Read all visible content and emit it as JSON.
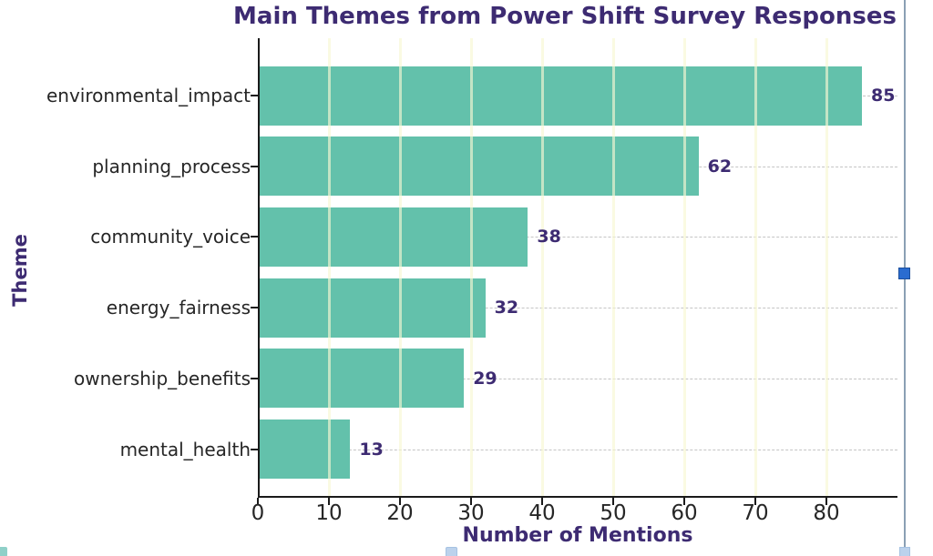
{
  "title": "Main Themes from Power Shift Survey Responses",
  "chart_data": {
    "type": "bar",
    "orientation": "horizontal",
    "title": "Main Themes from Power Shift Survey Responses",
    "xlabel": "Number of Mentions",
    "ylabel": "Theme",
    "categories": [
      "environmental_impact",
      "planning_process",
      "community_voice",
      "energy_fairness",
      "ownership_benefits",
      "mental_health"
    ],
    "values": [
      85,
      62,
      38,
      32,
      29,
      13
    ],
    "value_labels": [
      "85",
      "62",
      "38",
      "32",
      "29",
      "13"
    ],
    "xlim": [
      0,
      90
    ],
    "xticks": [
      0,
      10,
      20,
      30,
      40,
      50,
      60,
      70,
      80
    ],
    "grid": {
      "vertical": "on",
      "horizontal": "on-dashed",
      "legend": "none"
    },
    "colors": {
      "bar": "#63c1ab",
      "title_text": "#3d2b72",
      "axis_label_text": "#3d2b72",
      "value_label_text": "#3d2b72",
      "tick_text": "#262626",
      "spine": "#1a1a1a",
      "vertical_grid": "#f6f6d6",
      "horizontal_grid": "#c4c4c4"
    }
  },
  "editor_selection": {
    "handle_color": "#2a6cd0",
    "border_color": "#8aa0b4"
  }
}
